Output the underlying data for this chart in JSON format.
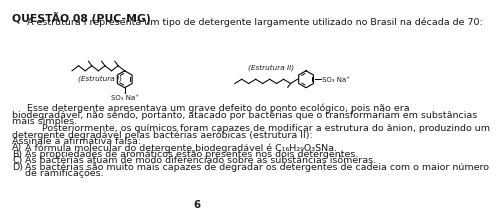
{
  "title": "QUESTÃO 08 (PUC-MG)",
  "line1": "     A estrutura I representa um tipo de detergente largamente utilizado no Brasil na década de 70:",
  "estrutura1_label": "(Estrutura I)",
  "estrutura2_label": "(Estrutura II)",
  "para1_indent": "     Esse detergente apresentava um grave defeito do ponto ecológico, pois não era",
  "para1_line2": "biodegradável, não sendo, portanto, atacado por bactérias que o transformariam em substâncias",
  "para1_line3": "mais simples.",
  "para2_indent": "          Posteriormente, os químicos foram capazes de modificar a estrutura do ânion, produzindo um",
  "para2_line2": "detergente degradável pelas bactérias aeróbicas (estrutura II):",
  "assinale": "Assinale a afirmativa falsa:",
  "optA_label": "A)",
  "optA_text": "A fórmula molecular do detergente biodegradável é C₁₆H₂₉O₃SNa.",
  "optB_label": "B)",
  "optB_text": "As propriedades de aromáticos estão presentes nos dois detergentes.",
  "optC_label": "C)",
  "optC_text": "As bactérias atuam de modo diferenciado sobre as substâncias isômeras.",
  "optD_label": "D)",
  "optD_text1": "As bactérias são muito mais capazes de degradar os detergentes de cadeia com o maior número",
  "optD_text2": "de ramificações.",
  "page_number": "6",
  "bg_color": "#ffffff",
  "text_color": "#1a1a1a",
  "font_size": 6.8,
  "title_font_size": 7.8
}
